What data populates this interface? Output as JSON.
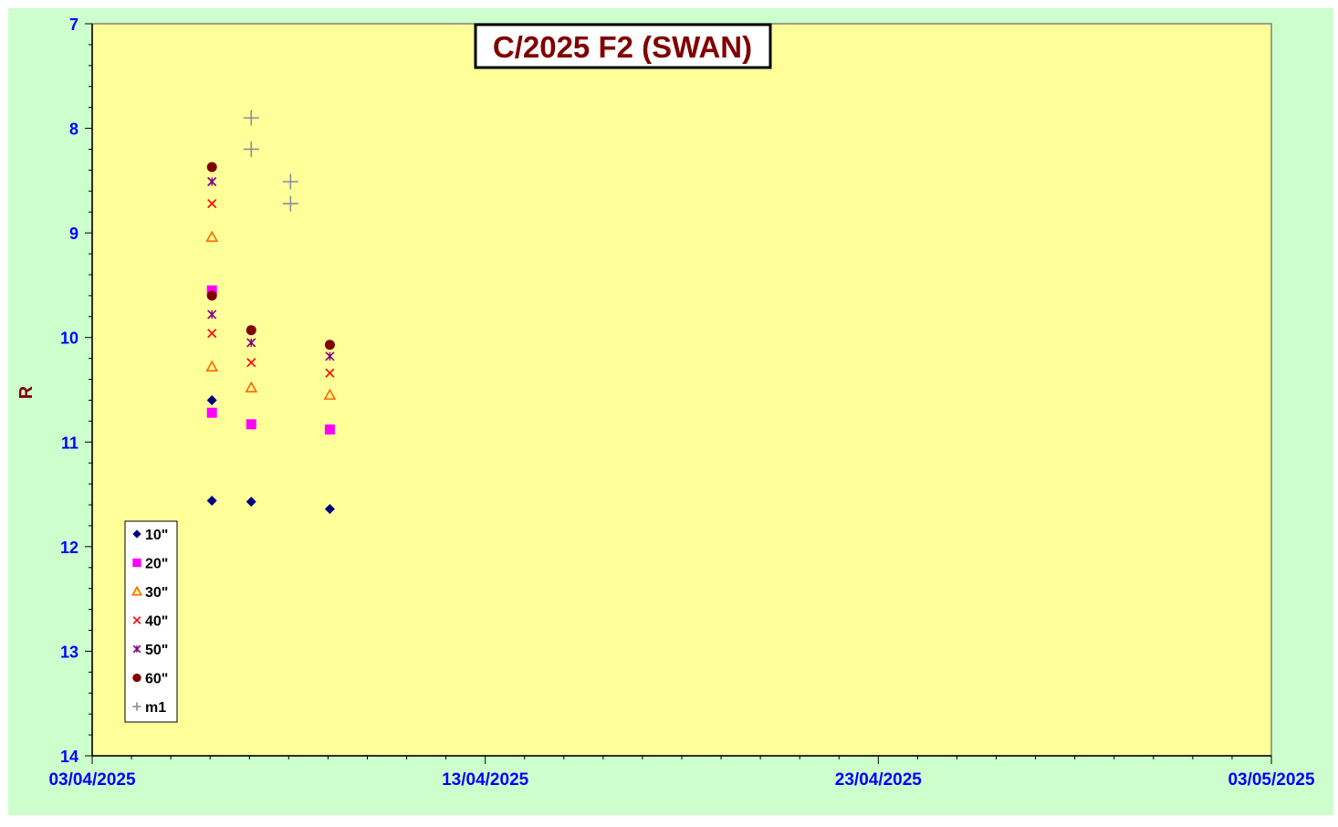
{
  "chart_data": {
    "type": "scatter",
    "title": "C/2025 F2 (SWAN)",
    "xlabel": "",
    "ylabel": "R",
    "x_type": "date",
    "xlim": [
      "2025-04-03",
      "2025-05-03"
    ],
    "ylim": [
      7,
      14
    ],
    "y_inverted": true,
    "grid": false,
    "legend_position": "bottom-left",
    "x_tick_labels": [
      "03/04/2025",
      "13/04/2025",
      "23/04/2025",
      "03/05/2025"
    ],
    "y_tick_labels": [
      "7",
      "8",
      "9",
      "10",
      "11",
      "12",
      "13",
      "14"
    ],
    "colors": {
      "outer_background": "#ccffcc",
      "plot_background": "#ffff99",
      "title_text": "#800000",
      "axis_text": "#0000ff",
      "ylabel_text": "#800000"
    },
    "series": [
      {
        "name": "10\"",
        "marker": "diamond",
        "color": "#000080",
        "points": [
          [
            "2025-04-06",
            10.6
          ],
          [
            "2025-04-06",
            11.56
          ],
          [
            "2025-04-07",
            11.57
          ],
          [
            "2025-04-09",
            11.64
          ]
        ]
      },
      {
        "name": "20\"",
        "marker": "square",
        "color": "#ff00ff",
        "points": [
          [
            "2025-04-06",
            9.55
          ],
          [
            "2025-04-06",
            10.72
          ],
          [
            "2025-04-07",
            10.83
          ],
          [
            "2025-04-09",
            10.88
          ]
        ]
      },
      {
        "name": "30\"",
        "marker": "triangle",
        "color": "#ff6600",
        "points": [
          [
            "2025-04-06",
            9.04
          ],
          [
            "2025-04-06",
            10.28
          ],
          [
            "2025-04-07",
            10.48
          ],
          [
            "2025-04-09",
            10.55
          ]
        ]
      },
      {
        "name": "40\"",
        "marker": "x",
        "color": "#ff0000",
        "points": [
          [
            "2025-04-06",
            8.72
          ],
          [
            "2025-04-06",
            9.96
          ],
          [
            "2025-04-07",
            10.24
          ],
          [
            "2025-04-09",
            10.34
          ]
        ]
      },
      {
        "name": "50\"",
        "marker": "star",
        "color": "#800080",
        "points": [
          [
            "2025-04-06",
            8.51
          ],
          [
            "2025-04-06",
            9.78
          ],
          [
            "2025-04-07",
            10.05
          ],
          [
            "2025-04-09",
            10.18
          ]
        ]
      },
      {
        "name": "60\"",
        "marker": "circle",
        "color": "#800000",
        "points": [
          [
            "2025-04-06",
            8.37
          ],
          [
            "2025-04-06",
            9.6
          ],
          [
            "2025-04-07",
            9.93
          ],
          [
            "2025-04-09",
            10.07
          ]
        ]
      },
      {
        "name": "m1",
        "marker": "plus",
        "color": "#8c8ca0",
        "points": [
          [
            "2025-04-07",
            7.9
          ],
          [
            "2025-04-07",
            8.2
          ],
          [
            "2025-04-08",
            8.51
          ],
          [
            "2025-04-08",
            8.72
          ]
        ]
      }
    ]
  }
}
